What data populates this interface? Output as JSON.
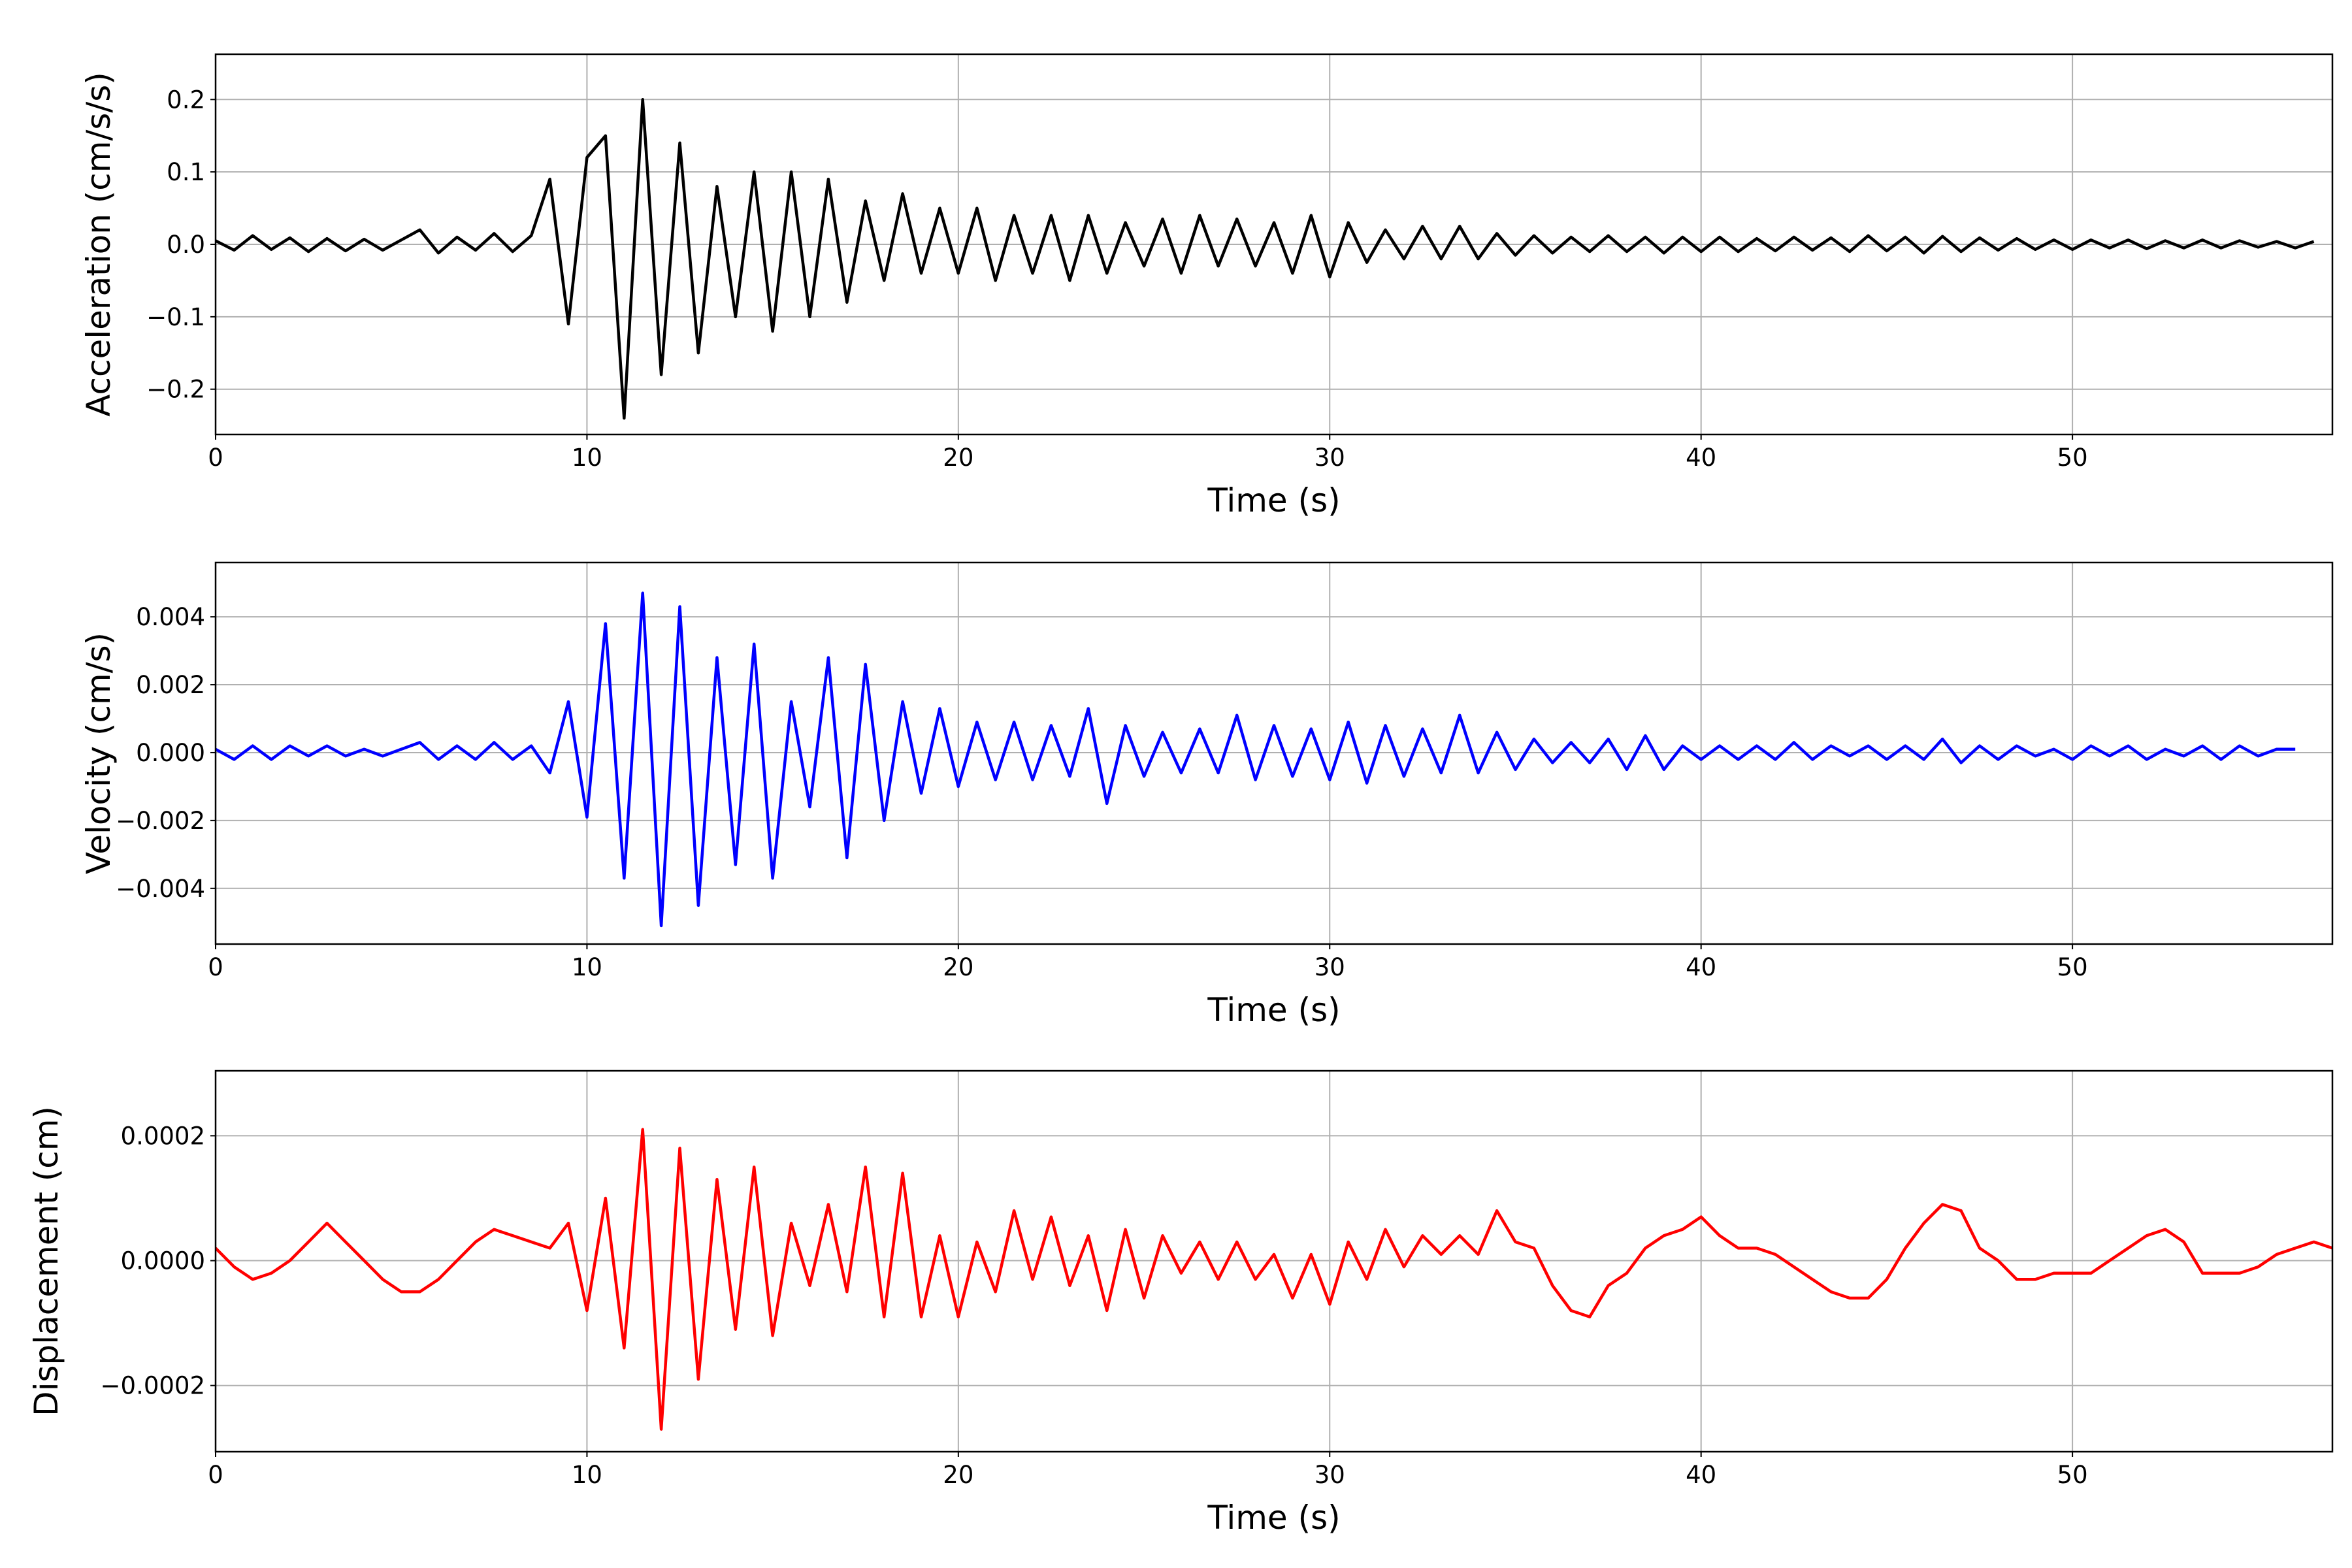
{
  "chart_data": [
    {
      "type": "line",
      "title": "",
      "xlabel": "Time (s)",
      "ylabel": "Acceleration (cm/s/s)",
      "color": "#000000",
      "xlim": [
        0,
        57
      ],
      "ylim": [
        -0.2625,
        0.2625
      ],
      "xticks": [
        0,
        10,
        20,
        30,
        40,
        50
      ],
      "xtick_labels": [
        "0",
        "10",
        "20",
        "30",
        "40",
        "50"
      ],
      "yticks": [
        -0.2,
        -0.1,
        0.0,
        0.1,
        0.2
      ],
      "ytick_labels": [
        "−0.2",
        "−0.1",
        "0.0",
        "0.1",
        "0.2"
      ],
      "grid": true,
      "dt": 0.5,
      "values": [
        0.005,
        -0.008,
        0.012,
        -0.007,
        0.009,
        -0.01,
        0.008,
        -0.009,
        0.007,
        -0.008,
        0.006,
        0.02,
        -0.012,
        0.01,
        -0.008,
        0.015,
        -0.01,
        0.012,
        0.09,
        -0.11,
        0.12,
        0.15,
        -0.24,
        0.2,
        -0.18,
        0.14,
        -0.15,
        0.08,
        -0.1,
        0.1,
        -0.12,
        0.1,
        -0.1,
        0.09,
        -0.08,
        0.06,
        -0.05,
        0.07,
        -0.04,
        0.05,
        -0.04,
        0.05,
        -0.05,
        0.04,
        -0.04,
        0.04,
        -0.05,
        0.04,
        -0.04,
        0.03,
        -0.03,
        0.035,
        -0.04,
        0.04,
        -0.03,
        0.035,
        -0.03,
        0.03,
        -0.04,
        0.04,
        -0.045,
        0.03,
        -0.025,
        0.02,
        -0.02,
        0.025,
        -0.02,
        0.025,
        -0.02,
        0.015,
        -0.015,
        0.012,
        -0.012,
        0.01,
        -0.01,
        0.012,
        -0.01,
        0.01,
        -0.012,
        0.01,
        -0.01,
        0.01,
        -0.01,
        0.008,
        -0.009,
        0.01,
        -0.008,
        0.009,
        -0.01,
        0.012,
        -0.009,
        0.01,
        -0.012,
        0.011,
        -0.01,
        0.009,
        -0.008,
        0.008,
        -0.007,
        0.006,
        -0.007,
        0.006,
        -0.005,
        0.006,
        -0.006,
        0.005,
        -0.005,
        0.006,
        -0.005,
        0.005,
        -0.004,
        0.004,
        -0.005,
        0.004
      ]
    },
    {
      "type": "line",
      "title": "",
      "xlabel": "Time (s)",
      "ylabel": "Velocity (cm/s)",
      "color": "#0000ff",
      "xlim": [
        0,
        57
      ],
      "ylim": [
        -0.00564,
        0.0056
      ],
      "xticks": [
        0,
        10,
        20,
        30,
        40,
        50
      ],
      "xtick_labels": [
        "0",
        "10",
        "20",
        "30",
        "40",
        "50"
      ],
      "yticks": [
        -0.004,
        -0.002,
        0.0,
        0.002,
        0.004
      ],
      "ytick_labels": [
        "−0.004",
        "−0.002",
        "0.000",
        "0.002",
        "0.004"
      ],
      "grid": true,
      "dt": 0.5,
      "values": [
        0.0001,
        -0.0002,
        0.0002,
        -0.0002,
        0.0002,
        -0.0001,
        0.0002,
        -0.0001,
        0.0001,
        -0.0001,
        0.0001,
        0.0003,
        -0.0002,
        0.0002,
        -0.0002,
        0.0003,
        -0.0002,
        0.0002,
        -0.0006,
        0.0015,
        -0.0019,
        0.0038,
        -0.0037,
        0.0047,
        -0.0051,
        0.0043,
        -0.0045,
        0.0028,
        -0.0033,
        0.0032,
        -0.0037,
        0.0015,
        -0.0016,
        0.0028,
        -0.0031,
        0.0026,
        -0.002,
        0.0015,
        -0.0012,
        0.0013,
        -0.001,
        0.0009,
        -0.0008,
        0.0009,
        -0.0008,
        0.0008,
        -0.0007,
        0.0013,
        -0.0015,
        0.0008,
        -0.0007,
        0.0006,
        -0.0006,
        0.0007,
        -0.0006,
        0.0011,
        -0.0008,
        0.0008,
        -0.0007,
        0.0007,
        -0.0008,
        0.0009,
        -0.0009,
        0.0008,
        -0.0007,
        0.0007,
        -0.0006,
        0.0011,
        -0.0006,
        0.0006,
        -0.0005,
        0.0004,
        -0.0003,
        0.0003,
        -0.0003,
        0.0004,
        -0.0005,
        0.0005,
        -0.0005,
        0.0002,
        -0.0002,
        0.0002,
        -0.0002,
        0.0002,
        -0.0002,
        0.0003,
        -0.0002,
        0.0002,
        -0.0001,
        0.0002,
        -0.0002,
        0.0002,
        -0.0002,
        0.0004,
        -0.0003,
        0.0002,
        -0.0002,
        0.0002,
        -0.0001,
        0.0001,
        -0.0002,
        0.0002,
        -0.0001,
        0.0002,
        -0.0002,
        0.0001,
        -0.0001,
        0.0002,
        -0.0002,
        0.0002,
        -0.0001,
        0.0001,
        0.0001
      ]
    },
    {
      "type": "line",
      "title": "",
      "xlabel": "Time (s)",
      "ylabel": "Displacement (cm)",
      "color": "#ff0000",
      "xlim": [
        0,
        57
      ],
      "ylim": [
        -0.000306,
        0.000304
      ],
      "xticks": [
        0,
        10,
        20,
        30,
        40,
        50
      ],
      "xtick_labels": [
        "0",
        "10",
        "20",
        "30",
        "40",
        "50"
      ],
      "yticks": [
        -0.0002,
        0.0,
        0.0002
      ],
      "ytick_labels": [
        "−0.0002",
        "0.0000",
        "0.0002"
      ],
      "grid": true,
      "dt": 0.5,
      "values": [
        2e-05,
        -1e-05,
        -3e-05,
        -2e-05,
        0.0,
        3e-05,
        6e-05,
        3e-05,
        0.0,
        -3e-05,
        -5e-05,
        -5e-05,
        -3e-05,
        0.0,
        3e-05,
        5e-05,
        4e-05,
        3e-05,
        2e-05,
        6e-05,
        -8e-05,
        0.0001,
        -0.00014,
        0.00021,
        -0.00027,
        0.00018,
        -0.00019,
        0.00013,
        -0.00011,
        0.00015,
        -0.00012,
        6e-05,
        -4e-05,
        9e-05,
        -5e-05,
        0.00015,
        -9e-05,
        0.00014,
        -9e-05,
        4e-05,
        -9e-05,
        3e-05,
        -5e-05,
        8e-05,
        -3e-05,
        7e-05,
        -4e-05,
        4e-05,
        -8e-05,
        5e-05,
        -6e-05,
        4e-05,
        -2e-05,
        3e-05,
        -3e-05,
        3e-05,
        -3e-05,
        1e-05,
        -6e-05,
        1e-05,
        -7e-05,
        3e-05,
        -3e-05,
        5e-05,
        -1e-05,
        4e-05,
        1e-05,
        4e-05,
        1e-05,
        8e-05,
        3e-05,
        2e-05,
        -4e-05,
        -8e-05,
        -9e-05,
        -4e-05,
        -2e-05,
        2e-05,
        4e-05,
        5e-05,
        7e-05,
        4e-05,
        2e-05,
        2e-05,
        1e-05,
        -1e-05,
        -3e-05,
        -5e-05,
        -6e-05,
        -6e-05,
        -3e-05,
        2e-05,
        6e-05,
        9e-05,
        8e-05,
        2e-05,
        0.0,
        -3e-05,
        -3e-05,
        -2e-05,
        -2e-05,
        -2e-05,
        0.0,
        2e-05,
        4e-05,
        5e-05,
        3e-05,
        -2e-05,
        -2e-05,
        -2e-05,
        -1e-05,
        1e-05,
        2e-05,
        3e-05,
        2e-05
      ]
    }
  ]
}
